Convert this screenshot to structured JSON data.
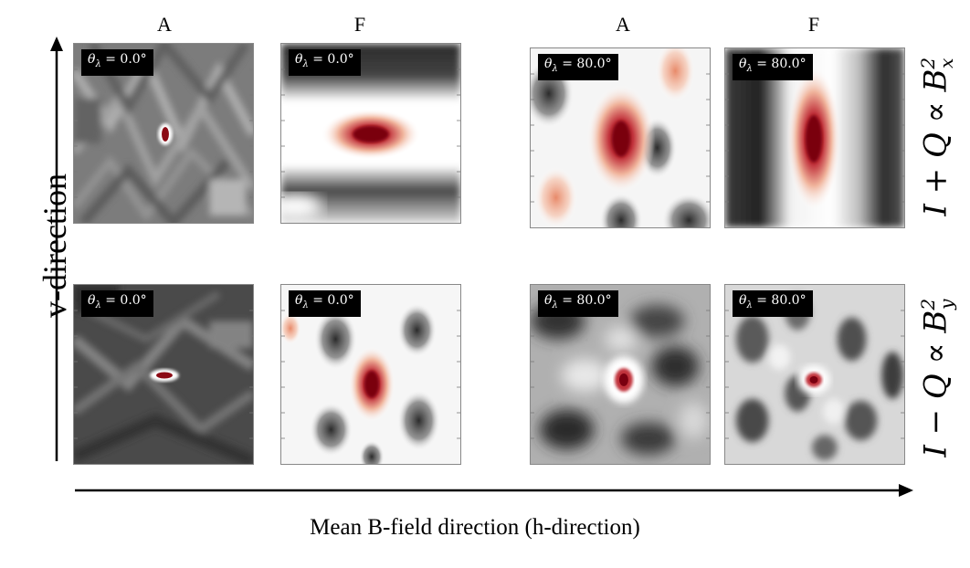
{
  "column_labels": [
    "A",
    "F",
    "A",
    "F"
  ],
  "row_labels": [
    {
      "base": "I + Q ∝ B",
      "sup": "2",
      "sub": "x"
    },
    {
      "base": "I − Q ∝ B",
      "sup": "2",
      "sub": "y"
    }
  ],
  "panel_tags": {
    "symbol": "θ",
    "subscript": "λ",
    "top_left": "= 0.0°",
    "top_mid": "= 0.0°",
    "top_right1": "= 80.0°",
    "top_right2": "= 80.0°",
    "bot_left": "= 0.0°",
    "bot_mid": "= 0.0°",
    "bot_right1": "= 80.0°",
    "bot_right2": "= 80.0°"
  },
  "axes": {
    "vertical": "v-direction",
    "horizontal": "Mean B-field direction (h-direction)"
  },
  "colors": {
    "peak": "#8b0a14",
    "mid_red": "#e8a08a",
    "white": "#ffffff",
    "dark": "#2a2a2a"
  }
}
